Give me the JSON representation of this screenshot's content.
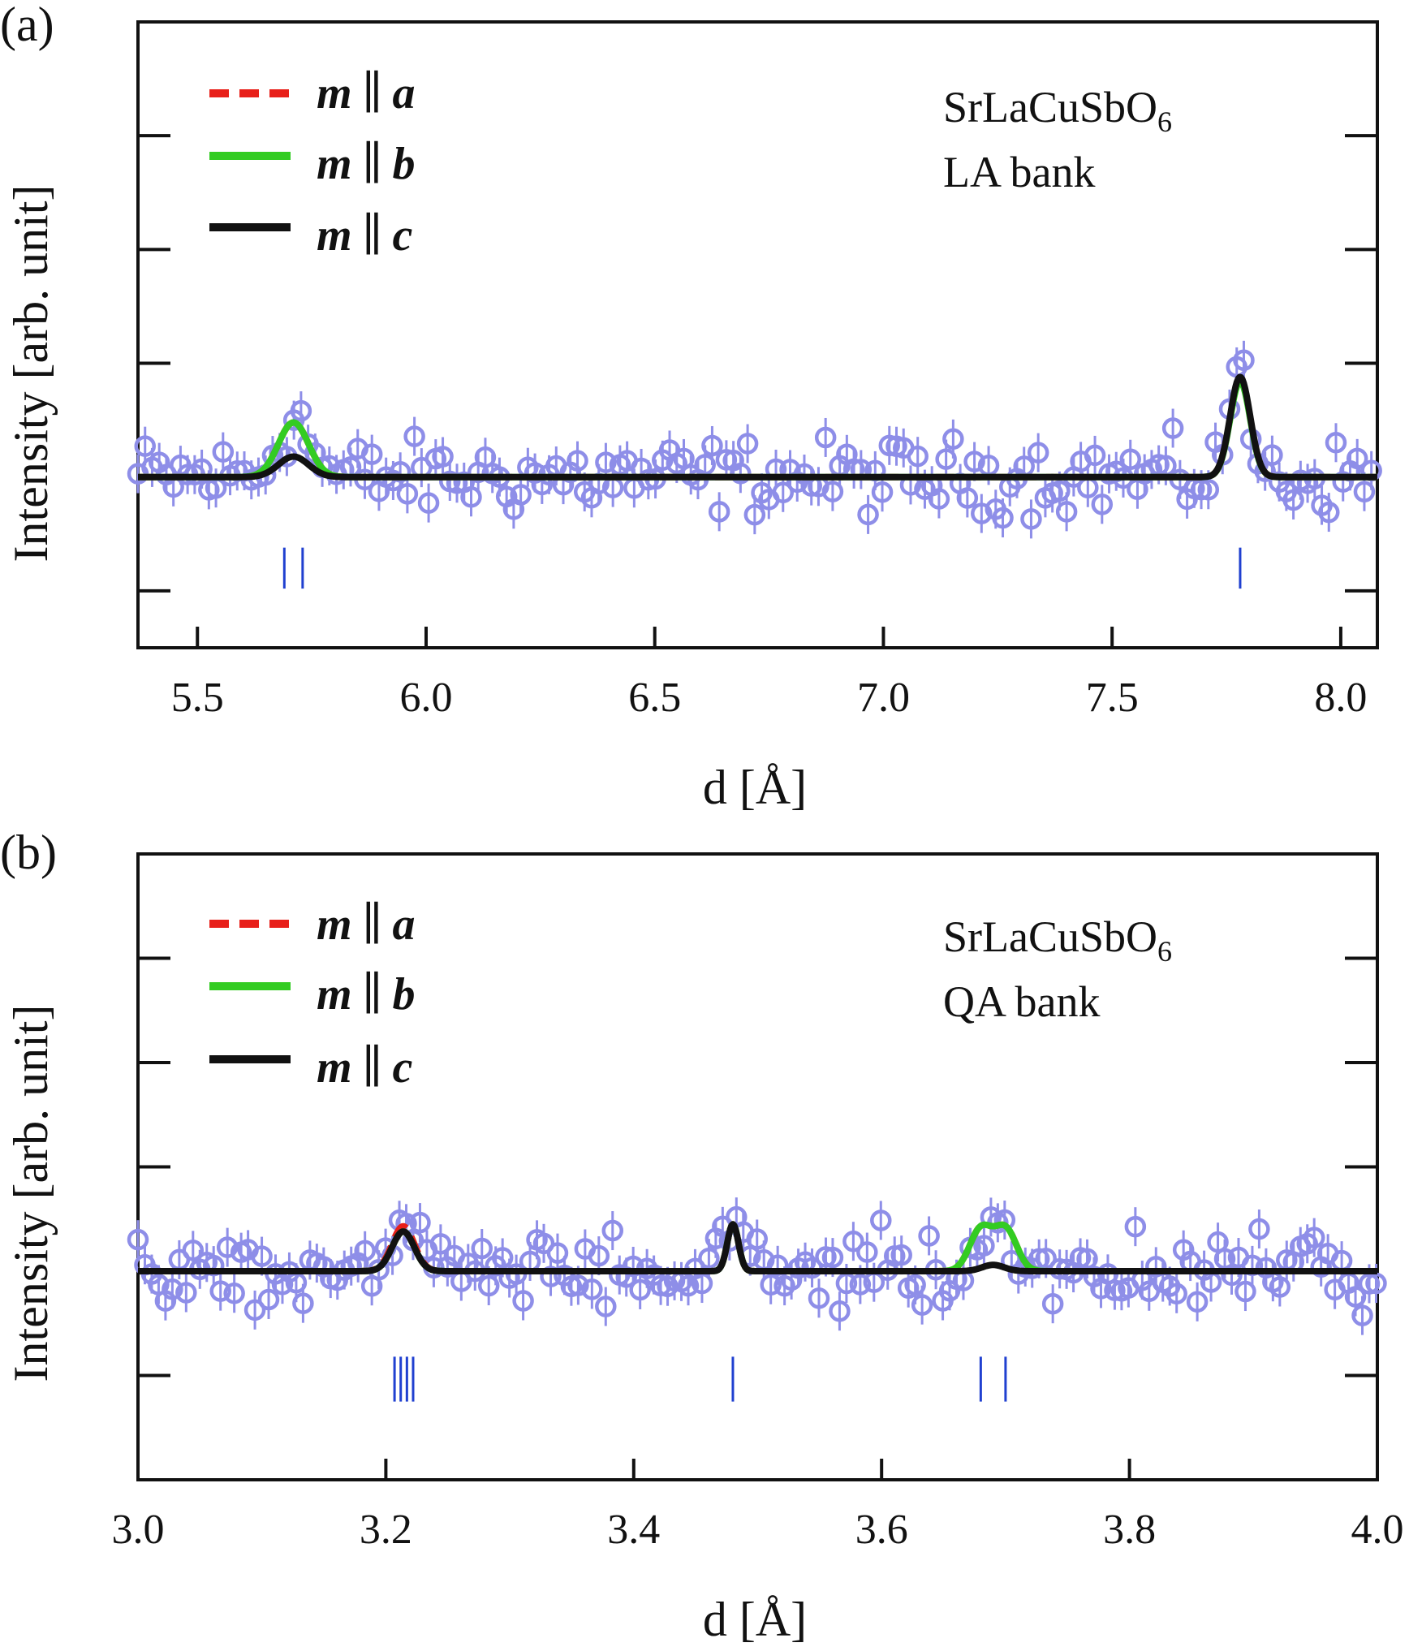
{
  "chart_data": [
    {
      "type": "scatter",
      "panel_label": "(a)",
      "xlabel": "d [Å]",
      "ylabel": "Intensity [arb. unit]",
      "xlim": [
        5.37,
        8.08
      ],
      "ylim": [
        -1.5,
        4.0
      ],
      "x_ticks": [
        5.5,
        6.0,
        6.5,
        7.0,
        7.5,
        8.0
      ],
      "x_tick_labels": [
        "5.5",
        "6.0",
        "6.5",
        "7.0",
        "7.5",
        "8.0"
      ],
      "y_ticks": [
        -1.0,
        0.0,
        1.0,
        2.0,
        3.0
      ],
      "annotation": {
        "compound": "SrLaCuSbO",
        "subscript": "6",
        "bank": "LA bank"
      },
      "legend": [
        {
          "sym": "m",
          "bar": "∥",
          "axis": "a",
          "color": "#e8201a",
          "style": "dashed"
        },
        {
          "sym": "m",
          "bar": "∥",
          "axis": "b",
          "color": "#33cc22",
          "style": "solid"
        },
        {
          "sym": "m",
          "bar": "∥",
          "axis": "c",
          "color": "#111111",
          "style": "solid"
        }
      ],
      "observed": {
        "color": "#8e8ee8",
        "x_step": 0.0155,
        "noise": 0.16,
        "peaks": [
          {
            "center": 5.71,
            "height": 0.52,
            "width": 0.035
          },
          {
            "center": 7.775,
            "height": 0.85,
            "width": 0.025
          }
        ]
      },
      "series": [
        {
          "name": "m ∥ a",
          "color": "#e8201a",
          "dashed": true,
          "peaks": [
            {
              "center": 5.71,
              "height": 0.48,
              "width": 0.033
            },
            {
              "center": 7.78,
              "height": 0.86,
              "width": 0.022
            }
          ]
        },
        {
          "name": "m ∥ b",
          "color": "#33cc22",
          "dashed": false,
          "peaks": [
            {
              "center": 5.71,
              "height": 0.48,
              "width": 0.033
            },
            {
              "center": 7.78,
              "height": 0.84,
              "width": 0.022
            }
          ]
        },
        {
          "name": "m ∥ c",
          "color": "#111111",
          "dashed": false,
          "peaks": [
            {
              "center": 5.71,
              "height": 0.18,
              "width": 0.033
            },
            {
              "center": 7.78,
              "height": 0.88,
              "width": 0.022
            }
          ]
        }
      ],
      "reflections": {
        "color": "#2040d0",
        "y_range": [
          -0.98,
          -0.62
        ],
        "positions": [
          5.69,
          5.73,
          7.78
        ]
      }
    },
    {
      "type": "scatter",
      "panel_label": "(b)",
      "xlabel": "d [Å]",
      "ylabel": "Intensity [arb. unit]",
      "xlim": [
        3.0,
        4.0
      ],
      "ylim": [
        -2.0,
        4.0
      ],
      "x_ticks": [
        3.0,
        3.2,
        3.4,
        3.6,
        3.8,
        4.0
      ],
      "x_tick_labels": [
        "3.0",
        "3.2",
        "3.4",
        "3.6",
        "3.8",
        "4.0"
      ],
      "y_ticks": [
        -1.0,
        0.0,
        1.0,
        2.0,
        3.0
      ],
      "annotation": {
        "compound": "SrLaCuSbO",
        "subscript": "6",
        "bank": "QA bank"
      },
      "legend": [
        {
          "sym": "m",
          "bar": "∥",
          "axis": "a",
          "color": "#e8201a",
          "style": "dashed"
        },
        {
          "sym": "m",
          "bar": "∥",
          "axis": "b",
          "color": "#33cc22",
          "style": "solid"
        },
        {
          "sym": "m",
          "bar": "∥",
          "axis": "c",
          "color": "#111111",
          "style": "solid"
        }
      ],
      "observed": {
        "color": "#8e8ee8",
        "x_step": 0.00555,
        "noise": 0.17,
        "peaks": [
          {
            "center": 3.215,
            "height": 0.45,
            "width": 0.012
          },
          {
            "center": 3.48,
            "height": 0.35,
            "width": 0.006
          },
          {
            "center": 3.69,
            "height": 0.5,
            "width": 0.012
          }
        ]
      },
      "series": [
        {
          "name": "m ∥ a",
          "color": "#e8201a",
          "dashed": true,
          "peaks": [
            {
              "center": 3.214,
              "height": 0.43,
              "width": 0.009
            },
            {
              "center": 3.48,
              "height": 0.45,
              "width": 0.0045
            },
            {
              "center": 3.68,
              "height": 0.4,
              "width": 0.009
            },
            {
              "center": 3.7,
              "height": 0.4,
              "width": 0.009
            }
          ]
        },
        {
          "name": "m ∥ b",
          "color": "#33cc22",
          "dashed": false,
          "peaks": [
            {
              "center": 3.214,
              "height": 0.38,
              "width": 0.009
            },
            {
              "center": 3.48,
              "height": 0.45,
              "width": 0.0045
            },
            {
              "center": 3.68,
              "height": 0.4,
              "width": 0.009
            },
            {
              "center": 3.7,
              "height": 0.4,
              "width": 0.009
            }
          ]
        },
        {
          "name": "m ∥ c",
          "color": "#111111",
          "dashed": false,
          "peaks": [
            {
              "center": 3.214,
              "height": 0.38,
              "width": 0.009
            },
            {
              "center": 3.48,
              "height": 0.45,
              "width": 0.0045
            },
            {
              "center": 3.69,
              "height": 0.06,
              "width": 0.009
            }
          ]
        }
      ],
      "reflections": {
        "color": "#2040d0",
        "y_range": [
          -1.25,
          -0.82
        ],
        "positions": [
          3.207,
          3.212,
          3.217,
          3.222,
          3.48,
          3.68,
          3.7
        ]
      }
    }
  ]
}
